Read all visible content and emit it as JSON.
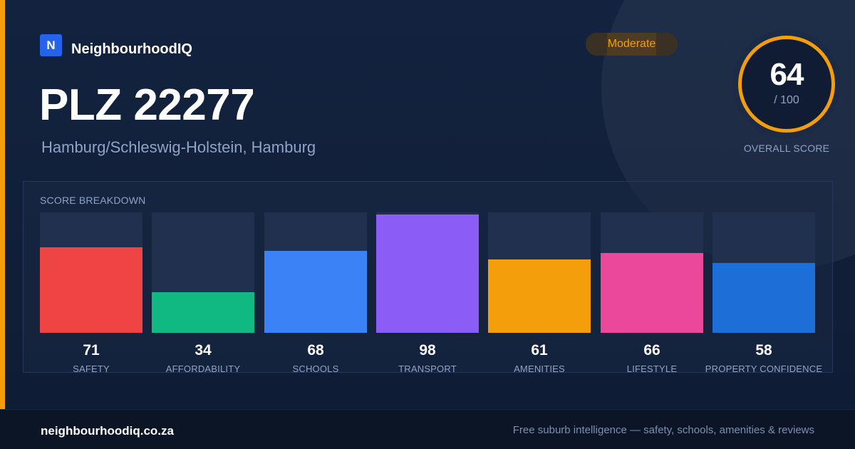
{
  "brand": {
    "logo_letter": "N",
    "name": "NeighbourhoodIQ"
  },
  "header": {
    "title": "PLZ 22277",
    "location": "Hamburg/Schleswig-Holstein, Hamburg",
    "badge": "Moderate",
    "badge_color": "#f59e0b"
  },
  "overall": {
    "score": "64",
    "max": "/ 100",
    "caption": "OVERALL SCORE",
    "ring_color": "#f59e0b"
  },
  "breakdown": {
    "title": "SCORE BREAKDOWN",
    "items": [
      {
        "label": "SAFETY",
        "value": "71",
        "score": 71,
        "color": "#ef4444"
      },
      {
        "label": "AFFORDABILITY",
        "value": "34",
        "score": 34,
        "color": "#10b981"
      },
      {
        "label": "SCHOOLS",
        "value": "68",
        "score": 68,
        "color": "#3b82f6"
      },
      {
        "label": "TRANSPORT",
        "value": "98",
        "score": 98,
        "color": "#8b5cf6"
      },
      {
        "label": "AMENITIES",
        "value": "61",
        "score": 61,
        "color": "#f59e0b"
      },
      {
        "label": "LIFESTYLE",
        "value": "66",
        "score": 66,
        "color": "#ec4899"
      },
      {
        "label": "PROPERTY CONFIDENCE",
        "value": "58",
        "score": 58,
        "color": "#1d6fd8"
      }
    ]
  },
  "footer": {
    "site": "neighbourhoodiq.co.za",
    "tagline": "Free suburb intelligence — safety, schools, amenities & reviews"
  }
}
